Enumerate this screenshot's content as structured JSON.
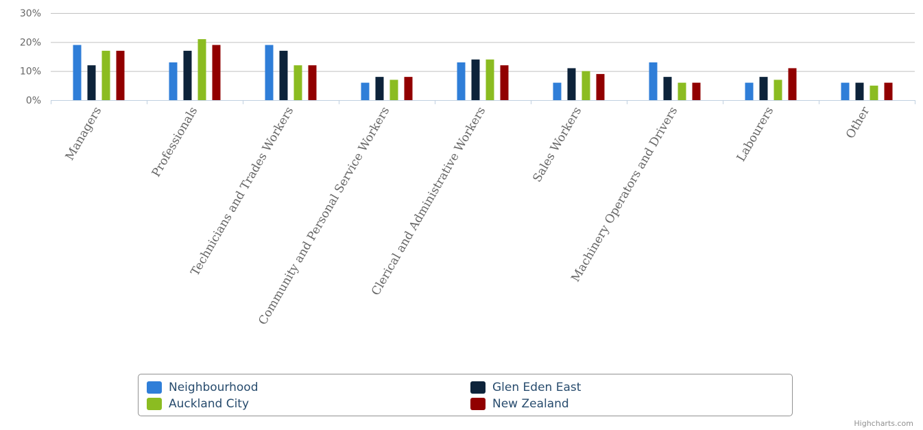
{
  "chart_data": {
    "type": "bar",
    "categories": [
      "Managers",
      "Professionals",
      "Technicians and Trades Workers",
      "Community and Personal Service Workers",
      "Clerical and Administrative Workers",
      "Sales Workers",
      "Machinery Operators and Drivers",
      "Labourers",
      "Other"
    ],
    "series": [
      {
        "name": "Neighbourhood",
        "color": "#2f7ed8",
        "values": [
          19,
          13,
          19,
          6,
          13,
          6,
          13,
          6,
          6
        ]
      },
      {
        "name": "Glen Eden East",
        "color": "#0d233a",
        "values": [
          12,
          17,
          17,
          8,
          14,
          11,
          8,
          8,
          6
        ]
      },
      {
        "name": "Auckland City",
        "color": "#8bbc21",
        "values": [
          17,
          21,
          12,
          7,
          14,
          10,
          6,
          7,
          5
        ]
      },
      {
        "name": "New Zealand",
        "color": "#910000",
        "values": [
          17,
          19,
          12,
          8,
          12,
          9,
          6,
          11,
          6
        ]
      }
    ],
    "y_ticks": [
      "0%",
      "10%",
      "20%",
      "30%"
    ],
    "ylim": [
      0,
      30
    ],
    "y_unit": "%",
    "grid": true,
    "legend_position": "bottom"
  },
  "credits": "Highcharts.com"
}
